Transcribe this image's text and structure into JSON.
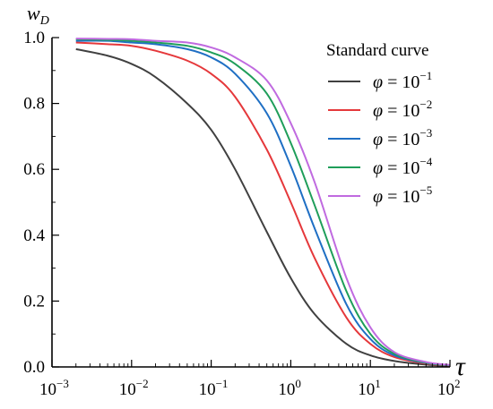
{
  "chart_data": {
    "type": "line",
    "xscale": "log",
    "xlim": [
      0.001,
      100
    ],
    "ylim": [
      0,
      1
    ],
    "xlabel": "τ",
    "ylabel": "w",
    "ylabel_sub": "D",
    "x_ticks": [
      {
        "base": "10",
        "exp": "−3"
      },
      {
        "base": "10",
        "exp": "−2"
      },
      {
        "base": "10",
        "exp": "−1"
      },
      {
        "base": "10",
        "exp": "0"
      },
      {
        "base": "10",
        "exp": "1"
      },
      {
        "base": "10",
        "exp": "2"
      }
    ],
    "y_ticks": [
      "0.0",
      "0.2",
      "0.4",
      "0.6",
      "0.8",
      "1.0"
    ],
    "legend_title": "Standard curve",
    "legend_position": "top-right",
    "grid": false,
    "series": [
      {
        "name_prefix": "φ = 10",
        "name_exp": "−1",
        "color": "#404040",
        "x": [
          0.002,
          0.005,
          0.01,
          0.02,
          0.05,
          0.1,
          0.2,
          0.5,
          1,
          2,
          5,
          10,
          20,
          50,
          100
        ],
        "y": [
          0.965,
          0.945,
          0.92,
          0.88,
          0.8,
          0.72,
          0.6,
          0.41,
          0.27,
          0.16,
          0.07,
          0.035,
          0.018,
          0.007,
          0.003
        ]
      },
      {
        "name_prefix": "φ = 10",
        "name_exp": "−2",
        "color": "#e5383b",
        "x": [
          0.002,
          0.005,
          0.01,
          0.02,
          0.05,
          0.1,
          0.2,
          0.5,
          1,
          2,
          5,
          10,
          20,
          50,
          100
        ],
        "y": [
          0.985,
          0.98,
          0.975,
          0.96,
          0.93,
          0.89,
          0.82,
          0.66,
          0.5,
          0.33,
          0.15,
          0.07,
          0.03,
          0.01,
          0.004
        ]
      },
      {
        "name_prefix": "φ = 10",
        "name_exp": "−3",
        "color": "#1f6fc4",
        "x": [
          0.002,
          0.005,
          0.01,
          0.02,
          0.05,
          0.1,
          0.2,
          0.5,
          1,
          2,
          5,
          10,
          20,
          50,
          100
        ],
        "y": [
          0.99,
          0.99,
          0.985,
          0.98,
          0.965,
          0.94,
          0.89,
          0.77,
          0.61,
          0.42,
          0.19,
          0.085,
          0.035,
          0.012,
          0.005
        ]
      },
      {
        "name_prefix": "φ = 10",
        "name_exp": "−4",
        "color": "#1f9e5a",
        "x": [
          0.002,
          0.005,
          0.01,
          0.02,
          0.05,
          0.1,
          0.2,
          0.5,
          1,
          2,
          5,
          10,
          20,
          50,
          100
        ],
        "y": [
          0.995,
          0.993,
          0.99,
          0.985,
          0.975,
          0.955,
          0.92,
          0.83,
          0.68,
          0.49,
          0.23,
          0.1,
          0.04,
          0.013,
          0.005
        ]
      },
      {
        "name_prefix": "φ = 10",
        "name_exp": "−5",
        "color": "#c06ae0",
        "x": [
          0.002,
          0.005,
          0.01,
          0.02,
          0.05,
          0.1,
          0.2,
          0.5,
          1,
          2,
          5,
          10,
          20,
          50,
          100
        ],
        "y": [
          0.997,
          0.996,
          0.995,
          0.99,
          0.985,
          0.97,
          0.94,
          0.87,
          0.74,
          0.56,
          0.27,
          0.12,
          0.045,
          0.015,
          0.006
        ]
      }
    ]
  }
}
